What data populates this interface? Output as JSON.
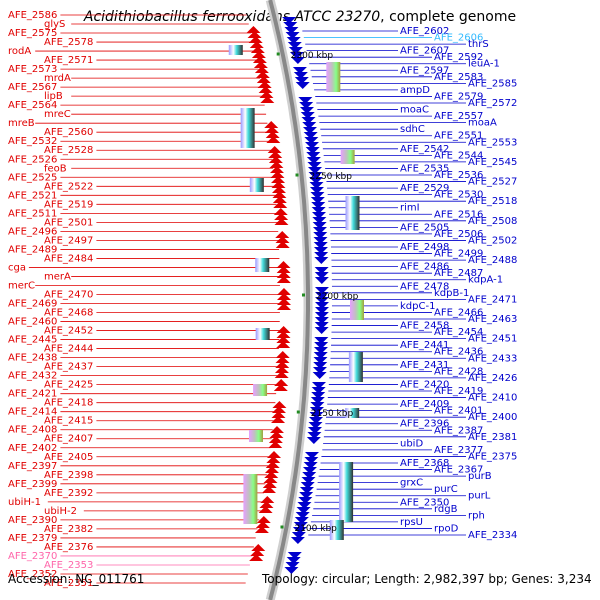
{
  "title": {
    "organism": "Acidithiobacillus ferrooxidans ATCC 23270",
    "suffix": ", complete genome"
  },
  "footer": {
    "accession": "Accession: NC_011761",
    "topology": "Topology: circular; Length: 2,982,397 bp; Genes: 3,234"
  },
  "colors": {
    "forward_strand": "#e00000",
    "reverse_strand": "#0000cc",
    "rna_label": "#ff66aa",
    "trna_label": "#33bbff",
    "backbone": "#888888",
    "tick": "#228b22"
  },
  "scale_ticks": [
    {
      "label": "2300 kbp",
      "side": "right"
    },
    {
      "label": "2250 kbp",
      "side": "right"
    },
    {
      "label": "2200 kbp",
      "side": "right"
    },
    {
      "label": "2150 kbp",
      "side": "right"
    },
    {
      "label": "2100 kbp",
      "side": "right"
    }
  ],
  "left_labels": [
    {
      "text": "AFE_2586",
      "color": "forward"
    },
    {
      "text": "glyS",
      "color": "forward"
    },
    {
      "text": "AFE_2575",
      "color": "forward"
    },
    {
      "text": "AFE_2578",
      "color": "forward"
    },
    {
      "text": "rodA",
      "color": "forward"
    },
    {
      "text": "AFE_2571",
      "color": "forward"
    },
    {
      "text": "AFE_2573",
      "color": "forward"
    },
    {
      "text": "mrdA",
      "color": "forward"
    },
    {
      "text": "AFE_2567",
      "color": "forward"
    },
    {
      "text": "lipB",
      "color": "forward"
    },
    {
      "text": "AFE_2564",
      "color": "forward"
    },
    {
      "text": "mreC",
      "color": "forward"
    },
    {
      "text": "mreB",
      "color": "forward"
    },
    {
      "text": "AFE_2560",
      "color": "forward"
    },
    {
      "text": "AFE_2532",
      "color": "forward"
    },
    {
      "text": "AFE_2528",
      "color": "forward"
    },
    {
      "text": "AFE_2526",
      "color": "forward"
    },
    {
      "text": "feoB",
      "color": "forward"
    },
    {
      "text": "AFE_2525",
      "color": "forward"
    },
    {
      "text": "AFE_2522",
      "color": "forward"
    },
    {
      "text": "AFE_2521",
      "color": "forward"
    },
    {
      "text": "AFE_2519",
      "color": "forward"
    },
    {
      "text": "AFE_2511",
      "color": "forward"
    },
    {
      "text": "AFE_2501",
      "color": "forward"
    },
    {
      "text": "AFE_2496",
      "color": "forward"
    },
    {
      "text": "AFE_2497",
      "color": "forward"
    },
    {
      "text": "AFE_2489",
      "color": "forward"
    },
    {
      "text": "AFE_2484",
      "color": "forward"
    },
    {
      "text": "cga",
      "color": "forward"
    },
    {
      "text": "merA",
      "color": "forward"
    },
    {
      "text": "merC",
      "color": "forward"
    },
    {
      "text": "AFE_2470",
      "color": "forward"
    },
    {
      "text": "AFE_2469",
      "color": "forward"
    },
    {
      "text": "AFE_2468",
      "color": "forward"
    },
    {
      "text": "AFE_2460",
      "color": "forward"
    },
    {
      "text": "AFE_2452",
      "color": "forward"
    },
    {
      "text": "AFE_2445",
      "color": "forward"
    },
    {
      "text": "AFE_2444",
      "color": "forward"
    },
    {
      "text": "AFE_2438",
      "color": "forward"
    },
    {
      "text": "AFE_2437",
      "color": "forward"
    },
    {
      "text": "AFE_2432",
      "color": "forward"
    },
    {
      "text": "AFE_2425",
      "color": "forward"
    },
    {
      "text": "AFE_2421",
      "color": "forward"
    },
    {
      "text": "AFE_2418",
      "color": "forward"
    },
    {
      "text": "AFE_2414",
      "color": "forward"
    },
    {
      "text": "AFE_2415",
      "color": "forward"
    },
    {
      "text": "AFE_2408",
      "color": "forward"
    },
    {
      "text": "AFE_2407",
      "color": "forward"
    },
    {
      "text": "AFE_2402",
      "color": "forward"
    },
    {
      "text": "AFE_2405",
      "color": "forward"
    },
    {
      "text": "AFE_2397",
      "color": "forward"
    },
    {
      "text": "AFE_2398",
      "color": "forward"
    },
    {
      "text": "AFE_2399",
      "color": "forward"
    },
    {
      "text": "AFE_2392",
      "color": "forward"
    },
    {
      "text": "ubiH-1",
      "color": "forward"
    },
    {
      "text": "ubiH-2",
      "color": "forward"
    },
    {
      "text": "AFE_2390",
      "color": "forward"
    },
    {
      "text": "AFE_2382",
      "color": "forward"
    },
    {
      "text": "AFE_2379",
      "color": "forward"
    },
    {
      "text": "AFE_2376",
      "color": "forward"
    },
    {
      "text": "AFE_2370",
      "color": "rna"
    },
    {
      "text": "AFE_2353",
      "color": "rna"
    },
    {
      "text": "AFE_2352",
      "color": "forward"
    },
    {
      "text": "AFE_2351",
      "color": "forward"
    }
  ],
  "right_labels": [
    {
      "text": "AFE_2602",
      "color": "reverse"
    },
    {
      "text": "AFE_2606",
      "color": "trna"
    },
    {
      "text": "thrS",
      "color": "reverse"
    },
    {
      "text": "AFE_2607",
      "color": "reverse"
    },
    {
      "text": "AFE_2592",
      "color": "reverse"
    },
    {
      "text": "leuA-1",
      "color": "reverse"
    },
    {
      "text": "AFE_2597",
      "color": "reverse"
    },
    {
      "text": "AFE_2583",
      "color": "reverse"
    },
    {
      "text": "AFE_2585",
      "color": "reverse"
    },
    {
      "text": "ampD",
      "color": "reverse"
    },
    {
      "text": "AFE_2579",
      "color": "reverse"
    },
    {
      "text": "AFE_2572",
      "color": "reverse"
    },
    {
      "text": "moaC",
      "color": "reverse"
    },
    {
      "text": "AFE_2557",
      "color": "reverse"
    },
    {
      "text": "moaA",
      "color": "reverse"
    },
    {
      "text": "sdhC",
      "color": "reverse"
    },
    {
      "text": "AFE_2551",
      "color": "reverse"
    },
    {
      "text": "AFE_2553",
      "color": "reverse"
    },
    {
      "text": "AFE_2542",
      "color": "reverse"
    },
    {
      "text": "AFE_2544",
      "color": "reverse"
    },
    {
      "text": "AFE_2545",
      "color": "reverse"
    },
    {
      "text": "AFE_2535",
      "color": "reverse"
    },
    {
      "text": "AFE_2536",
      "color": "reverse"
    },
    {
      "text": "AFE_2527",
      "color": "reverse"
    },
    {
      "text": "AFE_2529",
      "color": "reverse"
    },
    {
      "text": "AFE_2530",
      "color": "reverse"
    },
    {
      "text": "AFE_2518",
      "color": "reverse"
    },
    {
      "text": "rimI",
      "color": "reverse"
    },
    {
      "text": "AFE_2516",
      "color": "reverse"
    },
    {
      "text": "AFE_2508",
      "color": "reverse"
    },
    {
      "text": "AFE_2505",
      "color": "reverse"
    },
    {
      "text": "AFE_2506",
      "color": "reverse"
    },
    {
      "text": "AFE_2502",
      "color": "reverse"
    },
    {
      "text": "AFE_2498",
      "color": "reverse"
    },
    {
      "text": "AFE_2499",
      "color": "reverse"
    },
    {
      "text": "AFE_2488",
      "color": "reverse"
    },
    {
      "text": "AFE_2486",
      "color": "reverse"
    },
    {
      "text": "AFE_2487",
      "color": "reverse"
    },
    {
      "text": "kdpA-1",
      "color": "reverse"
    },
    {
      "text": "AFE_2478",
      "color": "reverse"
    },
    {
      "text": "kdpB-1",
      "color": "reverse"
    },
    {
      "text": "AFE_2471",
      "color": "reverse"
    },
    {
      "text": "kdpC-1",
      "color": "reverse"
    },
    {
      "text": "AFE_2466",
      "color": "reverse"
    },
    {
      "text": "AFE_2463",
      "color": "reverse"
    },
    {
      "text": "AFE_2458",
      "color": "reverse"
    },
    {
      "text": "AFE_2454",
      "color": "reverse"
    },
    {
      "text": "AFE_2451",
      "color": "reverse"
    },
    {
      "text": "AFE_2441",
      "color": "reverse"
    },
    {
      "text": "AFE_2436",
      "color": "reverse"
    },
    {
      "text": "AFE_2433",
      "color": "reverse"
    },
    {
      "text": "AFE_2431",
      "color": "reverse"
    },
    {
      "text": "AFE_2428",
      "color": "reverse"
    },
    {
      "text": "AFE_2426",
      "color": "reverse"
    },
    {
      "text": "AFE_2420",
      "color": "reverse"
    },
    {
      "text": "AFE_2419",
      "color": "reverse"
    },
    {
      "text": "AFE_2410",
      "color": "reverse"
    },
    {
      "text": "AFE_2409",
      "color": "reverse"
    },
    {
      "text": "AFE_2401",
      "color": "reverse"
    },
    {
      "text": "AFE_2400",
      "color": "reverse"
    },
    {
      "text": "AFE_2396",
      "color": "reverse"
    },
    {
      "text": "AFE_2387",
      "color": "reverse"
    },
    {
      "text": "AFE_2381",
      "color": "reverse"
    },
    {
      "text": "ubiD",
      "color": "reverse"
    },
    {
      "text": "AFE_2377",
      "color": "reverse"
    },
    {
      "text": "AFE_2375",
      "color": "reverse"
    },
    {
      "text": "AFE_2368",
      "color": "reverse"
    },
    {
      "text": "AFE_2367",
      "color": "reverse"
    },
    {
      "text": "purB",
      "color": "reverse"
    },
    {
      "text": "grxC",
      "color": "reverse"
    },
    {
      "text": "purC",
      "color": "reverse"
    },
    {
      "text": "purL",
      "color": "reverse"
    },
    {
      "text": "AFE_2350",
      "color": "reverse"
    },
    {
      "text": "rdgB",
      "color": "reverse"
    },
    {
      "text": "rph",
      "color": "reverse"
    },
    {
      "text": "rpsU",
      "color": "reverse"
    },
    {
      "text": "rpoD",
      "color": "reverse"
    },
    {
      "text": "AFE_2334",
      "color": "reverse"
    }
  ]
}
